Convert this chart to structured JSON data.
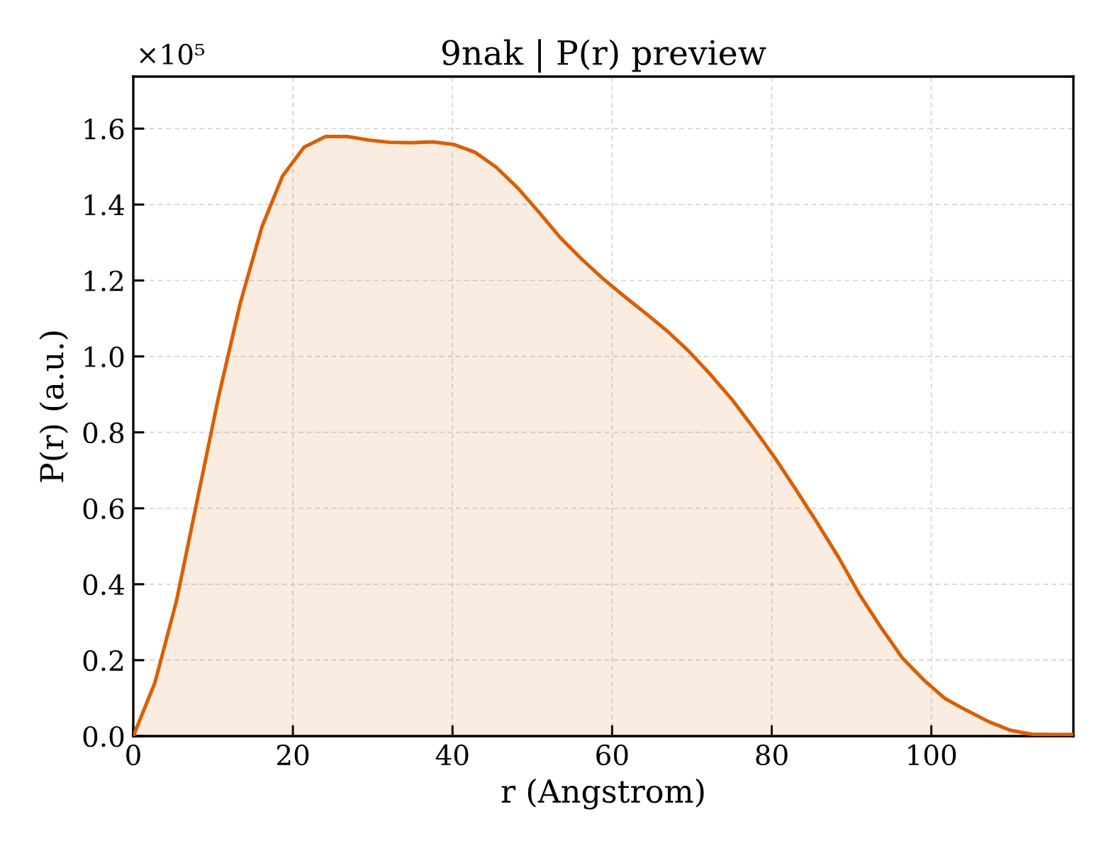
{
  "chart_data": {
    "type": "area",
    "title": "9nak | P(r) preview",
    "xlabel": "r (Angstrom)",
    "ylabel": "P(r) (a.u.)",
    "annotations": [
      "×10⁵"
    ],
    "x": [
      0,
      2.7,
      5.4,
      8.0,
      10.7,
      13.4,
      16.1,
      18.7,
      21.4,
      24.1,
      26.8,
      29.5,
      32.1,
      34.8,
      37.5,
      40.2,
      42.8,
      45.5,
      48.2,
      50.9,
      53.5,
      56.2,
      58.9,
      61.6,
      64.3,
      66.9,
      69.6,
      72.3,
      75.0,
      77.6,
      80.3,
      83.0,
      85.7,
      88.4,
      91.0,
      93.7,
      96.4,
      99.1,
      101.7,
      104.4,
      107.1,
      109.8,
      112.5,
      115.1,
      117.8
    ],
    "values": [
      0.0,
      0.14,
      0.355,
      0.62,
      0.895,
      1.14,
      1.34,
      1.475,
      1.551,
      1.579,
      1.579,
      1.57,
      1.564,
      1.563,
      1.565,
      1.558,
      1.538,
      1.498,
      1.443,
      1.378,
      1.313,
      1.256,
      1.204,
      1.157,
      1.112,
      1.067,
      1.014,
      0.953,
      0.887,
      0.815,
      0.736,
      0.65,
      0.562,
      0.47,
      0.373,
      0.286,
      0.205,
      0.147,
      0.099,
      0.068,
      0.039,
      0.016,
      0.005,
      0.004,
      0.004
    ],
    "color": "#d95f02",
    "xlim": [
      0,
      117.8
    ],
    "ylim": [
      0,
      1.737
    ],
    "xticks": [
      0,
      20,
      40,
      60,
      80,
      100
    ],
    "yticks": [
      {
        "value": 0,
        "label": "0.0"
      },
      0.2,
      0.4,
      0.6,
      0.8,
      {
        "value": 1,
        "label": "1.0"
      },
      1.2,
      1.4,
      1.6
    ],
    "grid": true
  }
}
